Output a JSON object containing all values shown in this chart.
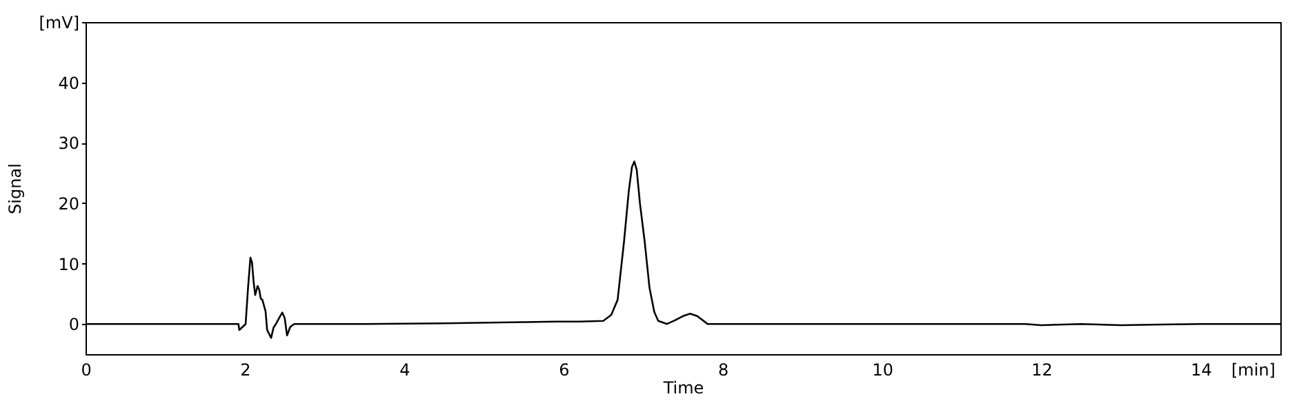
{
  "chart_data": {
    "type": "line",
    "xlabel": "Time",
    "ylabel": "Signal",
    "x": [
      0,
      1.0,
      1.92,
      1.93,
      1.95,
      1.97,
      1.99,
      2.01,
      2.04,
      2.07,
      2.09,
      2.11,
      2.13,
      2.16,
      2.18,
      2.2,
      2.22,
      2.26,
      2.28,
      2.29,
      2.31,
      2.33,
      2.36,
      2.39,
      2.44,
      2.47,
      2.5,
      2.53,
      2.57,
      2.62,
      2.73,
      3.5,
      4.5,
      5.5,
      5.9,
      6.2,
      6.5,
      6.6,
      6.68,
      6.76,
      6.82,
      6.86,
      6.89,
      6.92,
      6.96,
      7.02,
      7.08,
      7.14,
      7.19,
      7.3,
      7.4,
      7.5,
      7.59,
      7.68,
      7.81,
      8.5,
      10,
      11.8,
      12.0,
      12.5,
      13.0,
      13.5,
      14,
      15
    ],
    "series": [
      {
        "color": "#000000",
        "values": [
          0,
          0,
          0,
          -1,
          null,
          null,
          null,
          0,
          6,
          11,
          10.2,
          7,
          4.8,
          6.3,
          5.7,
          4.2,
          4,
          2.1,
          -1,
          null,
          null,
          -2.3,
          -0.6,
          0,
          1.2,
          1.9,
          1,
          -1.9,
          -0.5,
          0,
          0,
          0,
          0.1,
          0.3,
          0.4,
          0.4,
          0.5,
          1.5,
          4,
          13.6,
          22,
          26,
          26.9,
          25.5,
          20,
          13.6,
          6,
          2,
          0.5,
          0,
          0.6,
          1.3,
          1.7,
          1.3,
          0,
          0,
          0,
          0,
          -0.2,
          0,
          -0.2,
          -0.1,
          0,
          0
        ]
      }
    ],
    "xlim": [
      0,
      15
    ],
    "ylim": [
      -5,
      50
    ],
    "xticks": [
      0,
      2,
      4,
      6,
      8,
      10,
      12,
      14,
      {
        "value": 15,
        "label": "[min]"
      }
    ],
    "yticks": [
      0,
      10,
      20,
      30,
      40,
      {
        "value": 50,
        "label": "[mV]"
      }
    ],
    "grid": false,
    "marker": "none",
    "line_style": "solid"
  }
}
